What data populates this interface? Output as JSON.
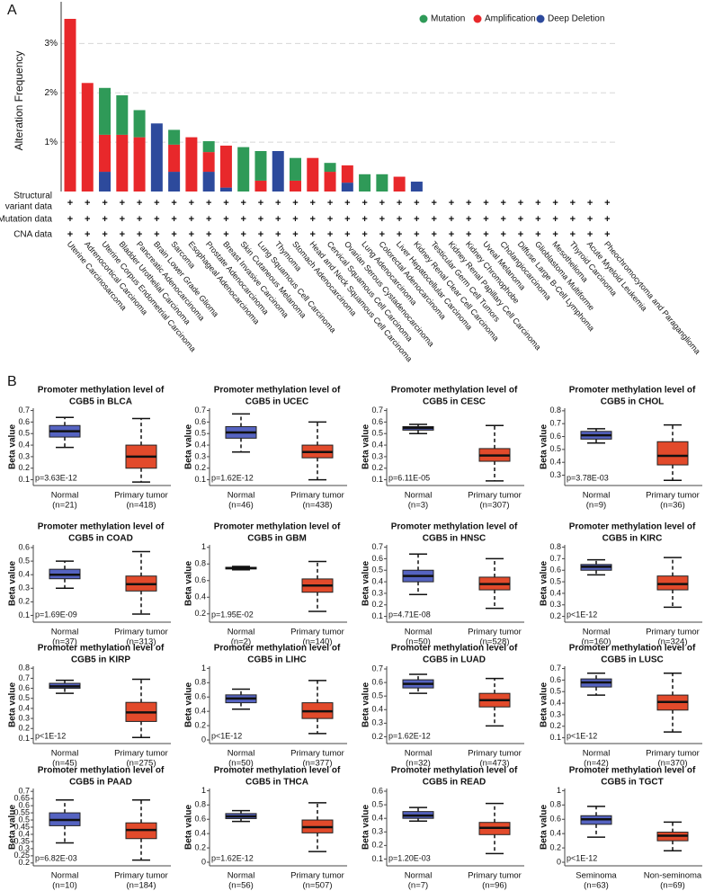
{
  "panel_labels": [
    "A",
    "B"
  ],
  "chart_data": [
    {
      "type": "stacked-bar",
      "y_label": "Alteration Frequency",
      "categories": [
        "Uterine Carcinosarcoma",
        "Adrenocortical Carcinoma",
        "Uterine Corpus Endometrial Carcinoma",
        "Bladder Urothelial Carcinoma",
        "Pancreatic Adenocarcinoma",
        "Brain Lower Grade Glioma",
        "Sarcoma",
        "Esophageal Adenocarcinoma",
        "Prostate Adenocarcinoma",
        "Breast Invasive Carcinoma",
        "Skin Cutaneous Melanoma",
        "Lung Squamous Cell Carcinoma",
        "Thymoma",
        "Stomach Adenocarcinoma",
        "Head and Neck Squamous Cell Carcinoma",
        "Cervical Squamous Cell Carcinoma",
        "Ovarian Serous Cystadenocarcinoma",
        "Lung Adenocarcinoma",
        "Colorectal Adenocarcinoma",
        "Liver Hepatocellular Carcinoma",
        "Kidney Renal Clear Cell Carcinoma",
        "Testicular Germ Cell Tumors",
        "Kidney Renal Papillary Cell Carcinoma",
        "Kidney Chromophobe",
        "Uveal Melanoma",
        "Cholangiocarcinoma",
        "Diffuse Large B-Cell Lymphoma",
        "Glioblastoma Multiforme",
        "Mesothelioma",
        "Thyroid Carcinoma",
        "Acute Myeloid Leukemia",
        "Pheochromocytoma and Paraganglioma"
      ],
      "series": [
        {
          "name": "Mutation",
          "color": "#2f9a58",
          "values": [
            0,
            0,
            0.95,
            0.8,
            0.55,
            0,
            0.3,
            0,
            0.22,
            0,
            0.9,
            0.6,
            0,
            0.46,
            0,
            0.18,
            0,
            0.35,
            0.35,
            0,
            0,
            0,
            0,
            0,
            0,
            0,
            0,
            0,
            0,
            0,
            0,
            0
          ]
        },
        {
          "name": "Amplification",
          "color": "#e8282b",
          "values": [
            3.5,
            2.2,
            0.75,
            1.15,
            1.1,
            0,
            0.55,
            1.1,
            0.4,
            0.85,
            0,
            0.22,
            0,
            0.22,
            0.68,
            0.4,
            0.35,
            0,
            0,
            0.3,
            0,
            0,
            0,
            0,
            0,
            0,
            0,
            0,
            0,
            0,
            0,
            0
          ]
        },
        {
          "name": "Deep Deletion",
          "color": "#2d4a9c",
          "values": [
            0,
            0,
            0.4,
            0,
            0,
            1.38,
            0.4,
            0,
            0.4,
            0.08,
            0,
            0,
            0.82,
            0,
            0,
            0,
            0.18,
            0,
            0,
            0,
            0.2,
            0,
            0,
            0,
            0,
            0,
            0,
            0,
            0,
            0,
            0,
            0
          ]
        }
      ],
      "ylim": [
        0,
        3.7
      ],
      "yticks": [
        {
          "value": 1,
          "label": "1%"
        },
        {
          "value": 2,
          "label": "2%"
        },
        {
          "value": 3,
          "label": "3%"
        }
      ],
      "grid": true,
      "legend": "top-right",
      "profile_rows": [
        {
          "label_lines": [
            "Structural",
            "variant data"
          ],
          "symbol": "+"
        },
        {
          "label_lines": [
            "Mutation data"
          ],
          "symbol": "+"
        },
        {
          "label_lines": [
            "CNA data"
          ],
          "symbol": "+"
        }
      ]
    },
    {
      "type": "box",
      "title": [
        "Promoter methylation level of",
        "CGB5 in BLCA"
      ],
      "y_label": "Beta value",
      "p_value": "p=3.63E-12",
      "categories": [
        "Normal",
        "Primary tumor"
      ],
      "n_labels": [
        "(n=21)",
        "(n=418)"
      ],
      "colors": [
        "#5563c1",
        "#e24a2b"
      ],
      "stats": [
        {
          "whislo": 0.38,
          "q1": 0.47,
          "med": 0.52,
          "q3": 0.57,
          "whishi": 0.64
        },
        {
          "whislo": 0.08,
          "q1": 0.2,
          "med": 0.3,
          "q3": 0.4,
          "whishi": 0.63
        }
      ],
      "ylim": [
        0.05,
        0.72
      ],
      "yticks": [
        0.1,
        0.2,
        0.3,
        0.4,
        0.5,
        0.6,
        0.7
      ]
    },
    {
      "type": "box",
      "title": [
        "Promoter methylation level of",
        "CGB5 in UCEC"
      ],
      "y_label": "Beta value",
      "p_value": "p=1.62E-12",
      "categories": [
        "Normal",
        "Primary tumor"
      ],
      "n_labels": [
        "(n=46)",
        "(n=438)"
      ],
      "colors": [
        "#5563c1",
        "#e24a2b"
      ],
      "stats": [
        {
          "whislo": 0.34,
          "q1": 0.46,
          "med": 0.51,
          "q3": 0.56,
          "whishi": 0.67
        },
        {
          "whislo": 0.1,
          "q1": 0.29,
          "med": 0.34,
          "q3": 0.4,
          "whishi": 0.6
        }
      ],
      "ylim": [
        0.05,
        0.72
      ],
      "yticks": [
        0.1,
        0.2,
        0.3,
        0.4,
        0.5,
        0.6,
        0.7
      ]
    },
    {
      "type": "box",
      "title": [
        "Promoter methylation level of",
        "CGB5 in CESC"
      ],
      "y_label": "Beta value",
      "p_value": "p=6.11E-05",
      "categories": [
        "Normal",
        "Primary tumor"
      ],
      "n_labels": [
        "(n=3)",
        "(n=307)"
      ],
      "colors": [
        "#5563c1",
        "#e24a2b"
      ],
      "stats": [
        {
          "whislo": 0.5,
          "q1": 0.53,
          "med": 0.55,
          "q3": 0.56,
          "whishi": 0.58
        },
        {
          "whislo": 0.09,
          "q1": 0.26,
          "med": 0.31,
          "q3": 0.37,
          "whishi": 0.57
        }
      ],
      "ylim": [
        0.05,
        0.72
      ],
      "yticks": [
        0.1,
        0.2,
        0.3,
        0.4,
        0.5,
        0.6,
        0.7
      ]
    },
    {
      "type": "box",
      "title": [
        "Promoter methylation level of",
        "CGB5 in CHOL"
      ],
      "y_label": "Beta value",
      "p_value": "p=3.78E-03",
      "categories": [
        "Normal",
        "Primary tumor"
      ],
      "n_labels": [
        "(n=9)",
        "(n=36)"
      ],
      "colors": [
        "#5563c1",
        "#e24a2b"
      ],
      "stats": [
        {
          "whislo": 0.55,
          "q1": 0.58,
          "med": 0.61,
          "q3": 0.64,
          "whishi": 0.66
        },
        {
          "whislo": 0.26,
          "q1": 0.38,
          "med": 0.45,
          "q3": 0.56,
          "whishi": 0.69
        }
      ],
      "ylim": [
        0.22,
        0.82
      ],
      "yticks": [
        0.3,
        0.4,
        0.5,
        0.6,
        0.7,
        0.8
      ]
    },
    {
      "type": "box",
      "title": [
        "Promoter methylation level of",
        "CGB5 in COAD"
      ],
      "y_label": "Beta value",
      "p_value": "p=1.69E-09",
      "categories": [
        "Normal",
        "Primary tumor"
      ],
      "n_labels": [
        "(n=37)",
        "(n=313)"
      ],
      "colors": [
        "#5563c1",
        "#e24a2b"
      ],
      "stats": [
        {
          "whislo": 0.3,
          "q1": 0.37,
          "med": 0.4,
          "q3": 0.44,
          "whishi": 0.5
        },
        {
          "whislo": 0.11,
          "q1": 0.28,
          "med": 0.33,
          "q3": 0.39,
          "whishi": 0.57
        }
      ],
      "ylim": [
        0.05,
        0.62
      ],
      "yticks": [
        0.1,
        0.2,
        0.3,
        0.4,
        0.5,
        0.6
      ]
    },
    {
      "type": "box",
      "title": [
        "Promoter methylation level of",
        "CGB5 in GBM"
      ],
      "y_label": "Beta value",
      "p_value": "p=1.95E-02",
      "categories": [
        "Normal",
        "Primary tumor"
      ],
      "n_labels": [
        "(n=2)",
        "(n=140)"
      ],
      "colors": [
        "#5563c1",
        "#e24a2b"
      ],
      "stats": [
        {
          "whislo": 0.73,
          "q1": 0.74,
          "med": 0.75,
          "q3": 0.76,
          "whishi": 0.77
        },
        {
          "whislo": 0.23,
          "q1": 0.46,
          "med": 0.54,
          "q3": 0.62,
          "whishi": 0.83
        }
      ],
      "ylim": [
        0.1,
        1.03
      ],
      "yticks": [
        0.2,
        0.4,
        0.6,
        0.8,
        1
      ]
    },
    {
      "type": "box",
      "title": [
        "Promoter methylation level of",
        "CGB5 in HNSC"
      ],
      "y_label": "Beta value",
      "p_value": "p=4.71E-08",
      "categories": [
        "Normal",
        "Primary tumor"
      ],
      "n_labels": [
        "(n=50)",
        "(n=528)"
      ],
      "colors": [
        "#5563c1",
        "#e24a2b"
      ],
      "stats": [
        {
          "whislo": 0.29,
          "q1": 0.4,
          "med": 0.45,
          "q3": 0.5,
          "whishi": 0.64
        },
        {
          "whislo": 0.17,
          "q1": 0.33,
          "med": 0.38,
          "q3": 0.44,
          "whishi": 0.6
        }
      ],
      "ylim": [
        0.05,
        0.72
      ],
      "yticks": [
        0.1,
        0.2,
        0.3,
        0.4,
        0.5,
        0.6,
        0.7
      ]
    },
    {
      "type": "box",
      "title": [
        "Promoter methylation level of",
        "CGB5 in KIRC"
      ],
      "y_label": "Beta value",
      "p_value": "p<1E-12",
      "categories": [
        "Normal",
        "Primary tumor"
      ],
      "n_labels": [
        "(n=160)",
        "(n=324)"
      ],
      "colors": [
        "#5563c1",
        "#e24a2b"
      ],
      "stats": [
        {
          "whislo": 0.56,
          "q1": 0.6,
          "med": 0.63,
          "q3": 0.65,
          "whishi": 0.69
        },
        {
          "whislo": 0.28,
          "q1": 0.43,
          "med": 0.48,
          "q3": 0.55,
          "whishi": 0.71
        }
      ],
      "ylim": [
        0.15,
        0.82
      ],
      "yticks": [
        0.2,
        0.3,
        0.4,
        0.5,
        0.6,
        0.7,
        0.8
      ]
    },
    {
      "type": "box",
      "title": [
        "Promoter methylation level of",
        "CGB5 in KIRP"
      ],
      "y_label": "Beta value",
      "p_value": "p<1E-12",
      "categories": [
        "Normal",
        "Primary tumor"
      ],
      "n_labels": [
        "(n=45)",
        "(n=275)"
      ],
      "colors": [
        "#5563c1",
        "#e24a2b"
      ],
      "stats": [
        {
          "whislo": 0.55,
          "q1": 0.6,
          "med": 0.62,
          "q3": 0.65,
          "whishi": 0.68
        },
        {
          "whislo": 0.11,
          "q1": 0.27,
          "med": 0.36,
          "q3": 0.46,
          "whishi": 0.69
        }
      ],
      "ylim": [
        0.05,
        0.82
      ],
      "yticks": [
        0.1,
        0.2,
        0.3,
        0.4,
        0.5,
        0.6,
        0.7,
        0.8
      ]
    },
    {
      "type": "box",
      "title": [
        "Promoter methylation level of",
        "CGB5 in LIHC"
      ],
      "y_label": "Beta value",
      "p_value": "p<1E-12",
      "categories": [
        "Normal",
        "Primary tumor"
      ],
      "n_labels": [
        "(n=50)",
        "(n=377)"
      ],
      "colors": [
        "#5563c1",
        "#e24a2b"
      ],
      "stats": [
        {
          "whislo": 0.43,
          "q1": 0.52,
          "med": 0.58,
          "q3": 0.63,
          "whishi": 0.71
        },
        {
          "whislo": 0.09,
          "q1": 0.3,
          "med": 0.4,
          "q3": 0.52,
          "whishi": 0.83
        }
      ],
      "ylim": [
        -0.05,
        1.03
      ],
      "yticks": [
        0,
        0.2,
        0.4,
        0.6,
        0.8,
        1
      ]
    },
    {
      "type": "box",
      "title": [
        "Promoter methylation level of",
        "CGB5 in LUAD"
      ],
      "y_label": "Beta value",
      "p_value": "p=1.62E-12",
      "categories": [
        "Normal",
        "Primary tumor"
      ],
      "n_labels": [
        "(n=32)",
        "(n=473)"
      ],
      "colors": [
        "#5563c1",
        "#e24a2b"
      ],
      "stats": [
        {
          "whislo": 0.52,
          "q1": 0.56,
          "med": 0.59,
          "q3": 0.62,
          "whishi": 0.66
        },
        {
          "whislo": 0.28,
          "q1": 0.42,
          "med": 0.47,
          "q3": 0.52,
          "whishi": 0.63
        }
      ],
      "ylim": [
        0.15,
        0.72
      ],
      "yticks": [
        0.2,
        0.3,
        0.4,
        0.5,
        0.6,
        0.7
      ]
    },
    {
      "type": "box",
      "title": [
        "Promoter methylation level of",
        "CGB5 in LUSC"
      ],
      "y_label": "Beta value",
      "p_value": "p<1E-12",
      "categories": [
        "Normal",
        "Primary tumor"
      ],
      "n_labels": [
        "(n=42)",
        "(n=370)"
      ],
      "colors": [
        "#5563c1",
        "#e24a2b"
      ],
      "stats": [
        {
          "whislo": 0.47,
          "q1": 0.54,
          "med": 0.58,
          "q3": 0.61,
          "whishi": 0.66
        },
        {
          "whislo": 0.15,
          "q1": 0.34,
          "med": 0.41,
          "q3": 0.47,
          "whishi": 0.66
        }
      ],
      "ylim": [
        0.05,
        0.72
      ],
      "yticks": [
        0.1,
        0.2,
        0.3,
        0.4,
        0.5,
        0.6,
        0.7
      ]
    },
    {
      "type": "box",
      "title": [
        "Promoter methylation level of",
        "CGB5 in PAAD"
      ],
      "y_label": "Beta value",
      "p_value": "p=6.82E-03",
      "categories": [
        "Normal",
        "Primary tumor"
      ],
      "n_labels": [
        "(n=10)",
        "(n=184)"
      ],
      "colors": [
        "#5563c1",
        "#e24a2b"
      ],
      "stats": [
        {
          "whislo": 0.34,
          "q1": 0.46,
          "med": 0.5,
          "q3": 0.55,
          "whishi": 0.64
        },
        {
          "whislo": 0.22,
          "q1": 0.37,
          "med": 0.43,
          "q3": 0.48,
          "whishi": 0.64
        }
      ],
      "ylim": [
        0.18,
        0.72
      ],
      "yticks": [
        0.2,
        0.25,
        0.3,
        0.35,
        0.4,
        0.45,
        0.5,
        0.55,
        0.6,
        0.65,
        0.7
      ]
    },
    {
      "type": "box",
      "title": [
        "Promoter methylation level of",
        "CGB5 in THCA"
      ],
      "y_label": "Beta value",
      "p_value": "p=1.62E-12",
      "categories": [
        "Normal",
        "Primary tumor"
      ],
      "n_labels": [
        "(n=56)",
        "(n=507)"
      ],
      "colors": [
        "#5563c1",
        "#e24a2b"
      ],
      "stats": [
        {
          "whislo": 0.57,
          "q1": 0.61,
          "med": 0.64,
          "q3": 0.68,
          "whishi": 0.72
        },
        {
          "whislo": 0.15,
          "q1": 0.41,
          "med": 0.49,
          "q3": 0.59,
          "whishi": 0.83
        }
      ],
      "ylim": [
        -0.05,
        1.03
      ],
      "yticks": [
        0,
        0.2,
        0.4,
        0.6,
        0.8,
        1
      ]
    },
    {
      "type": "box",
      "title": [
        "Promoter methylation level of",
        "CGB5 in READ"
      ],
      "y_label": "Beta value",
      "p_value": "p=1.20E-03",
      "categories": [
        "Normal",
        "Primary tumor"
      ],
      "n_labels": [
        "(n=7)",
        "(n=96)"
      ],
      "colors": [
        "#5563c1",
        "#e24a2b"
      ],
      "stats": [
        {
          "whislo": 0.38,
          "q1": 0.4,
          "med": 0.42,
          "q3": 0.45,
          "whishi": 0.48
        },
        {
          "whislo": 0.14,
          "q1": 0.28,
          "med": 0.33,
          "q3": 0.37,
          "whishi": 0.51
        }
      ],
      "ylim": [
        0.05,
        0.62
      ],
      "yticks": [
        0.1,
        0.2,
        0.3,
        0.4,
        0.5,
        0.6
      ]
    },
    {
      "type": "box",
      "title": [
        "Promoter methylation level of",
        "CGB5 in TGCT"
      ],
      "y_label": "Beta value",
      "p_value": "p<1E-12",
      "categories": [
        "Seminoma",
        "Non-seminoma"
      ],
      "n_labels": [
        "(n=63)",
        "(n=69)"
      ],
      "colors": [
        "#5563c1",
        "#e24a2b"
      ],
      "stats": [
        {
          "whislo": 0.35,
          "q1": 0.53,
          "med": 0.6,
          "q3": 0.65,
          "whishi": 0.78
        },
        {
          "whislo": 0.16,
          "q1": 0.3,
          "med": 0.37,
          "q3": 0.42,
          "whishi": 0.56
        }
      ],
      "ylim": [
        -0.05,
        1.03
      ],
      "yticks": [
        0,
        0.2,
        0.4,
        0.6,
        0.8,
        1
      ]
    }
  ]
}
